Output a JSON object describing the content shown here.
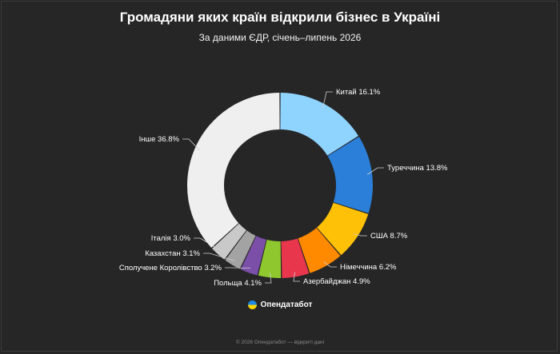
{
  "chart_data": {
    "type": "pie",
    "title": "Громадяни яких країн відкрили бізнес в Україні",
    "subtitle": "За даними ЄДР, січень–липень 2026",
    "categories": [
      "Китай",
      "Туреччина",
      "США",
      "Німеччина",
      "Азербайджан",
      "Польща",
      "Сполучене Королівство",
      "Казахстан",
      "Італія",
      "Інше"
    ],
    "values": [
      16.1,
      13.8,
      8.7,
      6.2,
      4.9,
      4.1,
      3.2,
      3.1,
      3.0,
      36.8
    ],
    "labels": [
      "Китай 16.1%",
      "Туреччина 13.8%",
      "США 8.7%",
      "Німеччина 6.2%",
      "Азербайджан 4.9%",
      "Польща 4.1%",
      "Сполучене Королівство 3.2%",
      "Казахстан 3.1%",
      "Італія 3.0%",
      "Інше 36.8%"
    ],
    "colors": [
      "#8fd3ff",
      "#2b7fd9",
      "#ffc107",
      "#ff8a00",
      "#e8364d",
      "#8fc72e",
      "#7b4fa8",
      "#a3a3a3",
      "#c9c9c9",
      "#efefef"
    ],
    "donut": true
  },
  "brand": {
    "name": "Опендатабот",
    "icon": "ukraine-flag-icon"
  },
  "footer": "© 2026 Опендатабот — відкриті дані"
}
